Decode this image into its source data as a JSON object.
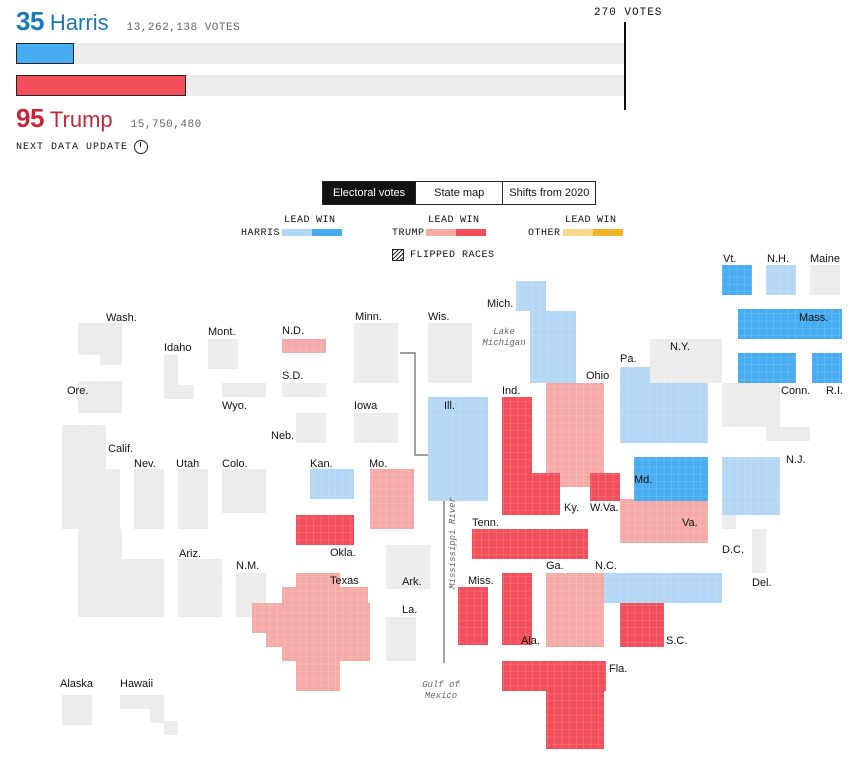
{
  "header": {
    "harris": {
      "electoral": "35",
      "name": "Harris",
      "votes": "13,262,138 VOTES",
      "ev_count": 35
    },
    "trump": {
      "electoral": "95",
      "name": "Trump",
      "votes": "15,750,480",
      "ev_count": 95
    },
    "threshold_label": "270 VOTES",
    "next_update": "NEXT DATA UPDATE"
  },
  "view_toggle": {
    "options": [
      "Electoral votes",
      "State map",
      "Shifts from 2020"
    ],
    "active": "Electoral votes"
  },
  "legend": {
    "lead": "LEAD",
    "win": "WIN",
    "harris": "HARRIS",
    "trump": "TRUMP",
    "other": "OTHER",
    "flipped": "FLIPPED RACES"
  },
  "colors": {
    "harris_lead": "#b3d7f5",
    "harris_win": "#47acf0",
    "trump_lead": "#f5aaa8",
    "trump_win": "#f24f5b",
    "other_lead": "#f7d98b",
    "other_win": "#f0b428",
    "none": "#ececec",
    "harris_text": "#1a7ab8",
    "trump_text": "#c4283b"
  },
  "annotations": {
    "lake": "Lake\nMichigan",
    "river": "Mississippi River",
    "gulf": "Gulf of\nMexico"
  },
  "states": [
    {
      "name": "Wash.",
      "status": "none"
    },
    {
      "name": "Ore.",
      "status": "none"
    },
    {
      "name": "Calif.",
      "status": "none"
    },
    {
      "name": "Idaho",
      "status": "none"
    },
    {
      "name": "Nev.",
      "status": "none"
    },
    {
      "name": "Utah",
      "status": "none"
    },
    {
      "name": "Ariz.",
      "status": "none"
    },
    {
      "name": "Mont.",
      "status": "none"
    },
    {
      "name": "Wyo.",
      "status": "none"
    },
    {
      "name": "Colo.",
      "status": "none"
    },
    {
      "name": "N.M.",
      "status": "none"
    },
    {
      "name": "N.D.",
      "status": "trump_lead"
    },
    {
      "name": "S.D.",
      "status": "none"
    },
    {
      "name": "Neb.",
      "status": "none"
    },
    {
      "name": "Kan.",
      "status": "harris_lead"
    },
    {
      "name": "Okla.",
      "status": "trump_win"
    },
    {
      "name": "Texas",
      "status": "trump_lead"
    },
    {
      "name": "Minn.",
      "status": "none"
    },
    {
      "name": "Iowa",
      "status": "none"
    },
    {
      "name": "Mo.",
      "status": "trump_lead"
    },
    {
      "name": "Ark.",
      "status": "none"
    },
    {
      "name": "La.",
      "status": "none"
    },
    {
      "name": "Wis.",
      "status": "none"
    },
    {
      "name": "Ill.",
      "status": "harris_lead"
    },
    {
      "name": "Mich.",
      "status": "harris_lead"
    },
    {
      "name": "Ind.",
      "status": "trump_win"
    },
    {
      "name": "Ohio",
      "status": "trump_lead"
    },
    {
      "name": "Ky.",
      "status": "trump_win"
    },
    {
      "name": "Tenn.",
      "status": "trump_win"
    },
    {
      "name": "Miss.",
      "status": "trump_win"
    },
    {
      "name": "Ala.",
      "status": "trump_win"
    },
    {
      "name": "Ga.",
      "status": "trump_lead"
    },
    {
      "name": "Fla.",
      "status": "trump_win"
    },
    {
      "name": "S.C.",
      "status": "trump_win"
    },
    {
      "name": "N.C.",
      "status": "harris_lead"
    },
    {
      "name": "Va.",
      "status": "trump_lead"
    },
    {
      "name": "W.Va.",
      "status": "trump_win"
    },
    {
      "name": "Pa.",
      "status": "harris_lead"
    },
    {
      "name": "N.Y.",
      "status": "none"
    },
    {
      "name": "Md.",
      "status": "harris_win"
    },
    {
      "name": "D.C.",
      "status": "none"
    },
    {
      "name": "Del.",
      "status": "none"
    },
    {
      "name": "N.J.",
      "status": "harris_lead"
    },
    {
      "name": "Conn.",
      "status": "harris_win"
    },
    {
      "name": "R.I.",
      "status": "harris_win"
    },
    {
      "name": "Mass.",
      "status": "harris_win"
    },
    {
      "name": "Vt.",
      "status": "harris_win"
    },
    {
      "name": "N.H.",
      "status": "harris_lead"
    },
    {
      "name": "Maine",
      "status": "none"
    },
    {
      "name": "Alaska",
      "status": "none"
    },
    {
      "name": "Hawaii",
      "status": "none"
    }
  ]
}
